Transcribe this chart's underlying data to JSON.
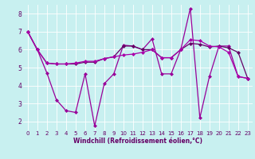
{
  "xlabel": "Windchill (Refroidissement éolien,°C)",
  "bg_color": "#c8f0f0",
  "grid_color": "#b0e0e0",
  "line_color1": "#990099",
  "line_color2": "#660066",
  "line_color3": "#aa00aa",
  "xlim": [
    -0.5,
    23.5
  ],
  "ylim": [
    1.5,
    8.5
  ],
  "yticks": [
    2,
    3,
    4,
    5,
    6,
    7,
    8
  ],
  "xticks": [
    0,
    1,
    2,
    3,
    4,
    5,
    6,
    7,
    8,
    9,
    10,
    11,
    12,
    13,
    14,
    15,
    16,
    17,
    18,
    19,
    20,
    21,
    22,
    23
  ],
  "line1_x": [
    0,
    1,
    2,
    3,
    4,
    5,
    6,
    7,
    8,
    9,
    10,
    11,
    12,
    13,
    14,
    15,
    16,
    17,
    18,
    19,
    20,
    21,
    22,
    23
  ],
  "line1_y": [
    7.0,
    6.0,
    4.7,
    3.2,
    2.6,
    2.5,
    4.65,
    1.75,
    4.1,
    4.65,
    6.25,
    6.2,
    6.0,
    6.6,
    4.65,
    4.65,
    6.0,
    8.3,
    2.2,
    4.5,
    6.2,
    6.2,
    4.5,
    4.4
  ],
  "line2_x": [
    0,
    1,
    2,
    3,
    4,
    5,
    6,
    7,
    8,
    9,
    10,
    11,
    12,
    13,
    14,
    15,
    16,
    17,
    18,
    19,
    20,
    21,
    22,
    23
  ],
  "line2_y": [
    7.0,
    6.0,
    5.25,
    5.2,
    5.2,
    5.2,
    5.3,
    5.3,
    5.5,
    5.6,
    6.2,
    6.2,
    6.0,
    6.0,
    5.55,
    5.55,
    6.0,
    6.35,
    6.3,
    6.15,
    6.2,
    6.1,
    5.85,
    4.4
  ],
  "line3_x": [
    0,
    1,
    2,
    3,
    4,
    5,
    6,
    7,
    8,
    9,
    10,
    11,
    12,
    13,
    14,
    15,
    16,
    17,
    18,
    19,
    20,
    21,
    22,
    23
  ],
  "line3_y": [
    7.0,
    6.0,
    5.25,
    5.2,
    5.2,
    5.25,
    5.35,
    5.35,
    5.5,
    5.6,
    5.7,
    5.75,
    5.85,
    6.0,
    5.55,
    5.55,
    6.0,
    6.55,
    6.5,
    6.2,
    6.15,
    5.85,
    4.5,
    4.4
  ]
}
